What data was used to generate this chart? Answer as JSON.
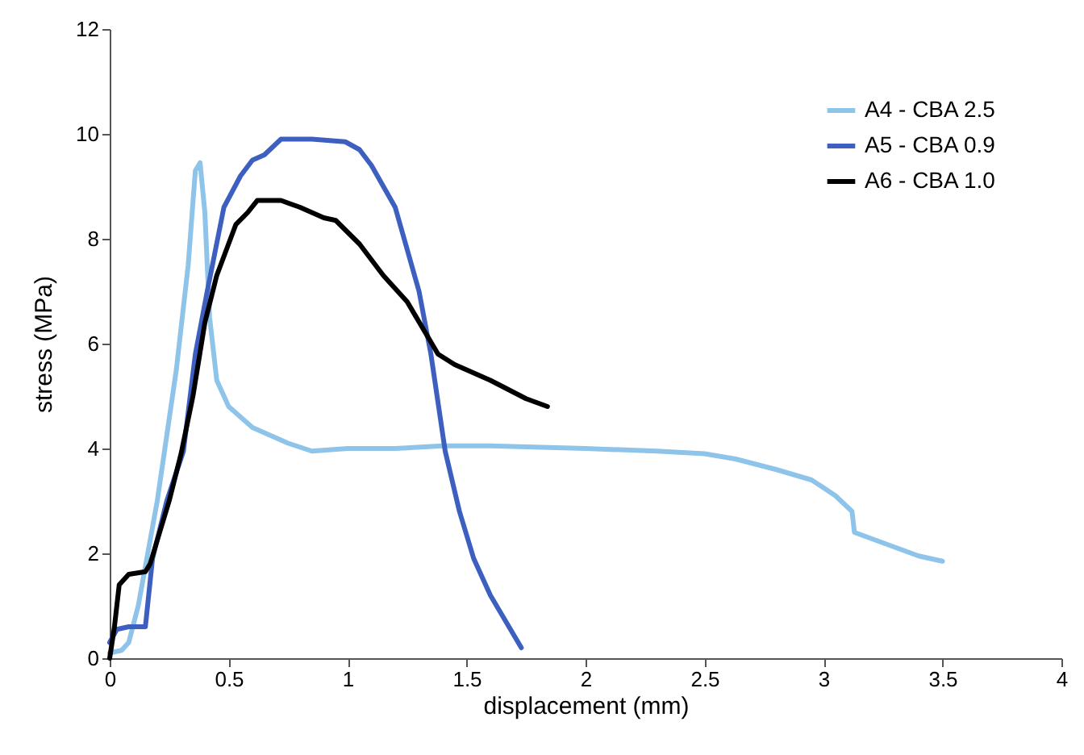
{
  "chart_data": {
    "type": "line",
    "xlabel": "displacement (mm)",
    "ylabel": "stress (MPa)",
    "xlim": [
      0,
      4
    ],
    "xticks": [
      0,
      0.5,
      1,
      1.5,
      2,
      2.5,
      3,
      3.5,
      4
    ],
    "ylim": [
      0,
      12
    ],
    "yticks": [
      0,
      2,
      4,
      6,
      8,
      10,
      12
    ],
    "grid": false,
    "legend": "top right",
    "line_style": "solid",
    "marker": "none",
    "series": [
      {
        "name": "A4 - CBA 2.5",
        "color": "#8ec3ea",
        "x": [
          0,
          0.05,
          0.08,
          0.12,
          0.2,
          0.28,
          0.33,
          0.36,
          0.38,
          0.4,
          0.42,
          0.45,
          0.5,
          0.6,
          0.75,
          0.85,
          1.0,
          1.2,
          1.4,
          1.6,
          2.0,
          2.3,
          2.5,
          2.63,
          2.8,
          2.95,
          3.05,
          3.12,
          3.13,
          3.25,
          3.4,
          3.5
        ],
        "values": [
          0.1,
          0.15,
          0.3,
          1.0,
          3.0,
          5.5,
          7.5,
          9.3,
          9.45,
          8.5,
          6.5,
          5.3,
          4.8,
          4.4,
          4.1,
          3.95,
          4.0,
          4.0,
          4.05,
          4.05,
          4.0,
          3.95,
          3.9,
          3.8,
          3.6,
          3.4,
          3.1,
          2.8,
          2.4,
          2.2,
          1.95,
          1.85
        ]
      },
      {
        "name": "A5 - CBA 0.9",
        "color": "#3d5fbf",
        "x": [
          0,
          0.03,
          0.08,
          0.15,
          0.18,
          0.24,
          0.31,
          0.36,
          0.41,
          0.48,
          0.55,
          0.6,
          0.65,
          0.72,
          0.85,
          0.99,
          1.05,
          1.1,
          1.2,
          1.3,
          1.35,
          1.41,
          1.47,
          1.53,
          1.6,
          1.73
        ],
        "values": [
          0.3,
          0.55,
          0.6,
          0.6,
          1.9,
          3.0,
          3.95,
          5.8,
          7.0,
          8.6,
          9.2,
          9.5,
          9.6,
          9.9,
          9.9,
          9.85,
          9.7,
          9.4,
          8.6,
          7.0,
          5.8,
          3.95,
          2.8,
          1.9,
          1.2,
          0.2
        ]
      },
      {
        "name": "A6 - CBA 1.0",
        "color": "#000000",
        "x": [
          0,
          0.02,
          0.04,
          0.08,
          0.15,
          0.17,
          0.25,
          0.3,
          0.35,
          0.4,
          0.45,
          0.53,
          0.58,
          0.62,
          0.72,
          0.8,
          0.9,
          0.95,
          1.05,
          1.15,
          1.25,
          1.38,
          1.45,
          1.6,
          1.75,
          1.84
        ],
        "values": [
          0,
          0.6,
          1.4,
          1.6,
          1.65,
          1.8,
          3.0,
          3.9,
          5.0,
          6.4,
          7.3,
          8.27,
          8.5,
          8.73,
          8.73,
          8.6,
          8.4,
          8.35,
          7.9,
          7.3,
          6.8,
          5.8,
          5.6,
          5.3,
          4.95,
          4.8
        ]
      }
    ]
  }
}
